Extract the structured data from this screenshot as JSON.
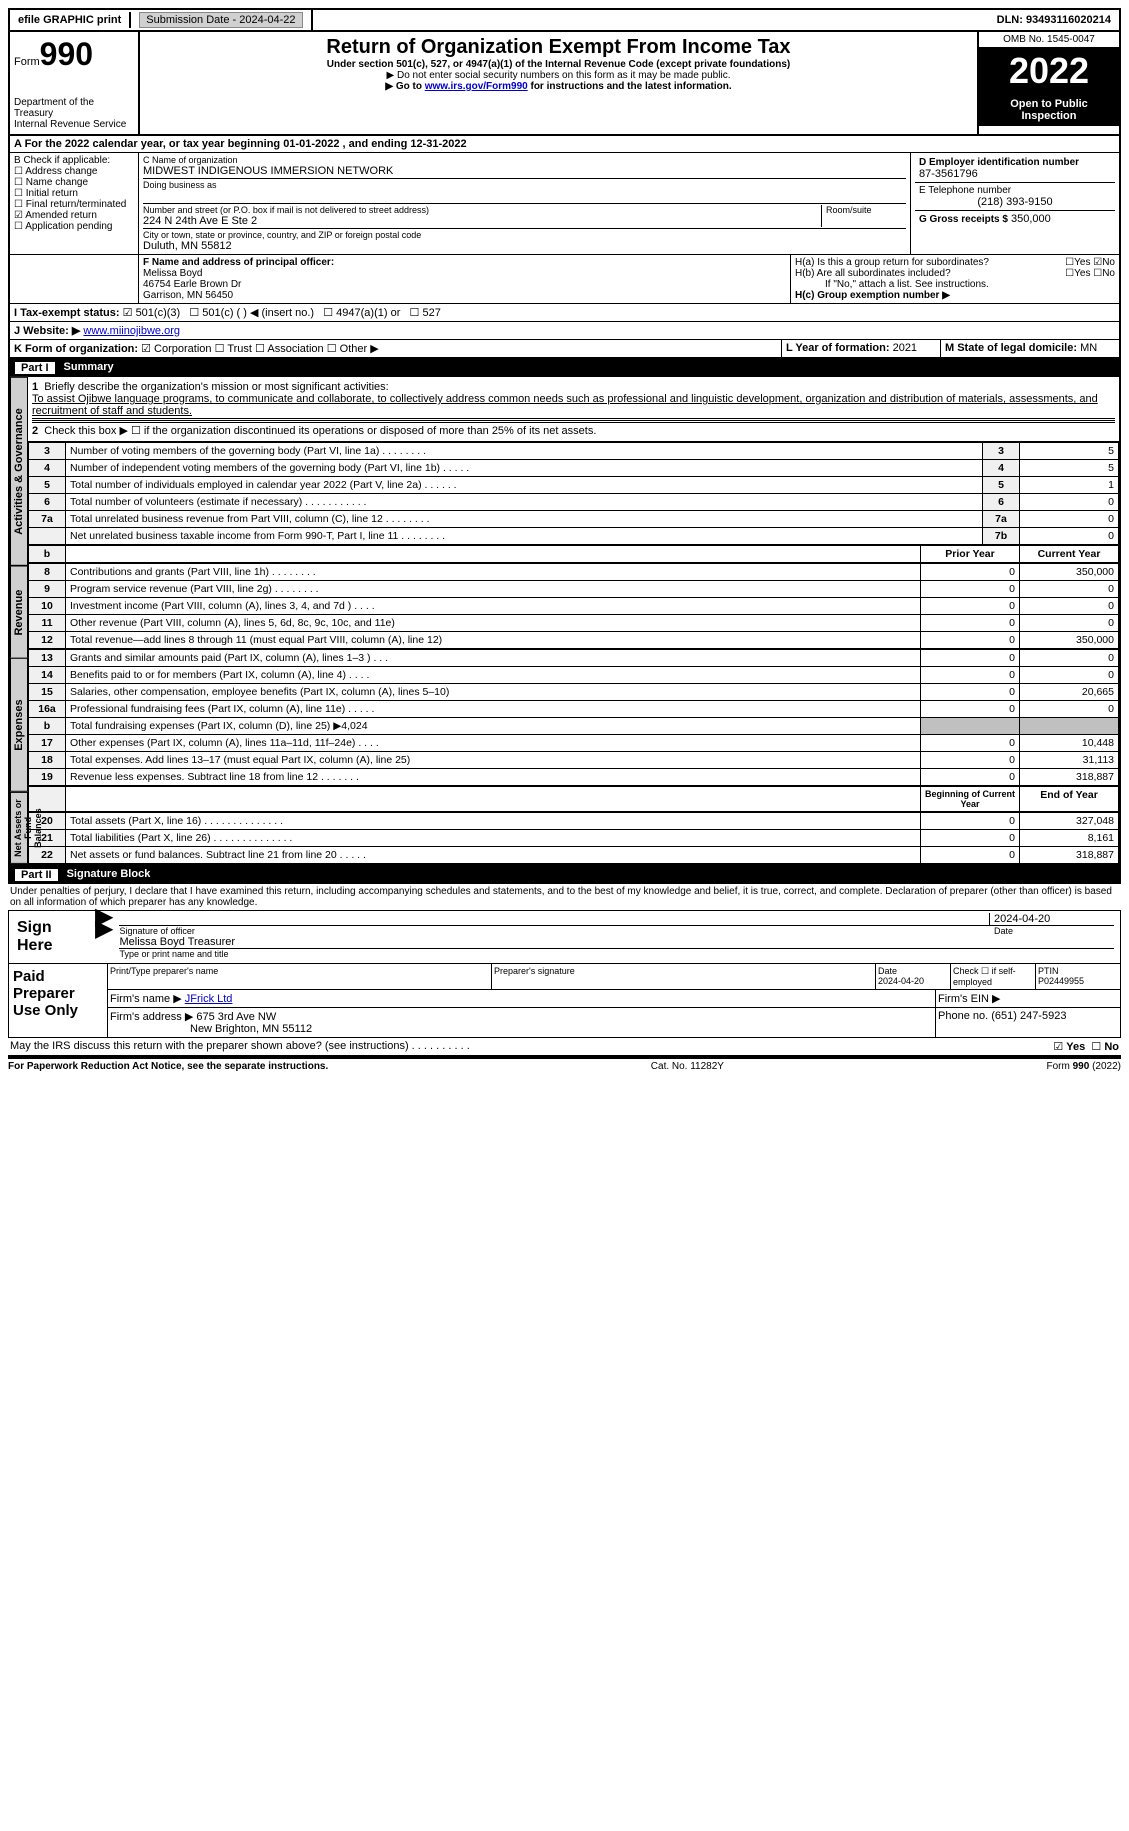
{
  "topbar": {
    "efile": "efile GRAPHIC print",
    "submission": "Submission Date - 2024-04-22",
    "dln": "DLN: 93493116020214"
  },
  "header": {
    "form_label": "Form",
    "form_number": "990",
    "dept": "Department of the Treasury",
    "irs": "Internal Revenue Service",
    "title": "Return of Organization Exempt From Income Tax",
    "subtitle": "Under section 501(c), 527, or 4947(a)(1) of the Internal Revenue Code (except private foundations)",
    "note1": "▶ Do not enter social security numbers on this form as it may be made public.",
    "note2_prefix": "▶ Go to ",
    "note2_link": "www.irs.gov/Form990",
    "note2_suffix": " for instructions and the latest information.",
    "omb": "OMB No. 1545-0047",
    "year": "2022",
    "inspect": "Open to Public Inspection"
  },
  "lineA": "A For the 2022 calendar year, or tax year beginning 01-01-2022   , and ending 12-31-2022",
  "boxB": {
    "title": "B Check if applicable:",
    "opts": [
      "Address change",
      "Name change",
      "Initial return",
      "Final return/terminated",
      "Amended return",
      "Application pending"
    ],
    "checked_index": 4
  },
  "boxC": {
    "label_name": "C Name of organization",
    "name": "MIDWEST INDIGENOUS IMMERSION NETWORK",
    "dba_label": "Doing business as",
    "addr_label": "Number and street (or P.O. box if mail is not delivered to street address)",
    "addr": "224 N 24th Ave E Ste 2",
    "room_label": "Room/suite",
    "city_label": "City or town, state or province, country, and ZIP or foreign postal code",
    "city": "Duluth, MN  55812"
  },
  "boxD": {
    "label": "D Employer identification number",
    "value": "87-3561796"
  },
  "boxE": {
    "label": "E Telephone number",
    "value": "(218) 393-9150"
  },
  "boxG": {
    "label": "G Gross receipts $",
    "value": "350,000"
  },
  "boxF": {
    "label": "F  Name and address of principal officer:",
    "name": "Melissa Boyd",
    "addr1": "46754 Earle Brown Dr",
    "addr2": "Garrison, MN  56450"
  },
  "boxH": {
    "ha": "H(a)  Is this a group return for subordinates?",
    "hb": "H(b)  Are all subordinates included?",
    "hb_note": "If \"No,\" attach a list. See instructions.",
    "hc": "H(c)  Group exemption number ▶",
    "yes": "Yes",
    "no": "No"
  },
  "lineI": {
    "label": "I   Tax-exempt status:",
    "o1": "501(c)(3)",
    "o2": "501(c) (  ) ◀ (insert no.)",
    "o3": "4947(a)(1) or",
    "o4": "527"
  },
  "lineJ": {
    "label": "J   Website: ▶",
    "value": "www.miinojibwe.org"
  },
  "lineK": {
    "label": "K Form of organization:",
    "o1": "Corporation",
    "o2": "Trust",
    "o3": "Association",
    "o4": "Other ▶"
  },
  "lineL": {
    "label": "L Year of formation:",
    "value": "2021"
  },
  "lineM": {
    "label": "M State of legal domicile:",
    "value": "MN"
  },
  "part1": {
    "label": "Part I",
    "title": "Summary"
  },
  "summary": {
    "line1_label": "1",
    "line1_text": "Briefly describe the organization's mission or most significant activities:",
    "line1_desc": "To assist Ojibwe language programs, to communicate and collaborate, to collectively address common needs such as professional and linguistic development, organization and distribution of materials, assessments, and recruitment of staff and students.",
    "line2": "Check this box ▶ ☐  if the organization discontinued its operations or disposed of more than 25% of its net assets.",
    "lines": [
      {
        "n": "3",
        "d": "Number of voting members of the governing body (Part VI, line 1a)  .    .    .    .    .    .    .    .",
        "box": "3",
        "v": "5"
      },
      {
        "n": "4",
        "d": "Number of independent voting members of the governing body (Part VI, line 1b)    .    .    .    .    .",
        "box": "4",
        "v": "5"
      },
      {
        "n": "5",
        "d": "Total number of individuals employed in calendar year 2022 (Part V, line 2a)   .    .    .    .    .    .",
        "box": "5",
        "v": "1"
      },
      {
        "n": "6",
        "d": "Total number of volunteers (estimate if necessary)     .    .    .    .    .    .    .    .    .    .    .",
        "box": "6",
        "v": "0"
      },
      {
        "n": "7a",
        "d": "Total unrelated business revenue from Part VIII, column (C), line 12   .    .    .    .    .    .    .    .",
        "box": "7a",
        "v": "0"
      },
      {
        "n": "",
        "d": "Net unrelated business taxable income from Form 990-T, Part I, line 11  .    .    .    .    .    .    .   .",
        "box": "7b",
        "v": "0"
      }
    ]
  },
  "revexp_header": {
    "b": "b",
    "prior": "Prior Year",
    "current": "Current Year"
  },
  "revenue": [
    {
      "n": "8",
      "d": "Contributions and grants (Part VIII, line 1h)     .    .    .    .    .    .    .    .",
      "p": "0",
      "c": "350,000"
    },
    {
      "n": "9",
      "d": "Program service revenue (Part VIII, line 2g)     .    .    .    .    .    .    .    .",
      "p": "0",
      "c": "0"
    },
    {
      "n": "10",
      "d": "Investment income (Part VIII, column (A), lines 3, 4, and 7d )    .    .    .    .",
      "p": "0",
      "c": "0"
    },
    {
      "n": "11",
      "d": "Other revenue (Part VIII, column (A), lines 5, 6d, 8c, 9c, 10c, and 11e)",
      "p": "0",
      "c": "0"
    },
    {
      "n": "12",
      "d": "Total revenue—add lines 8 through 11 (must equal Part VIII, column (A), line 12)",
      "p": "0",
      "c": "350,000"
    }
  ],
  "expenses": [
    {
      "n": "13",
      "d": "Grants and similar amounts paid (Part IX, column (A), lines 1–3 )   .    .    .",
      "p": "0",
      "c": "0"
    },
    {
      "n": "14",
      "d": "Benefits paid to or for members (Part IX, column (A), line 4)    .    .    .    .",
      "p": "0",
      "c": "0"
    },
    {
      "n": "15",
      "d": "Salaries, other compensation, employee benefits (Part IX, column (A), lines 5–10)",
      "p": "0",
      "c": "20,665"
    },
    {
      "n": "16a",
      "d": "Professional fundraising fees (Part IX, column (A), line 11e)    .    .    .    .    .",
      "p": "0",
      "c": "0"
    },
    {
      "n": "b",
      "d": "Total fundraising expenses (Part IX, column (D), line 25) ▶4,024",
      "p": "",
      "c": "",
      "grey": true
    },
    {
      "n": "17",
      "d": "Other expenses (Part IX, column (A), lines 11a–11d, 11f–24e)    .    .    .    .",
      "p": "0",
      "c": "10,448"
    },
    {
      "n": "18",
      "d": "Total expenses. Add lines 13–17 (must equal Part IX, column (A), line 25)",
      "p": "0",
      "c": "31,113"
    },
    {
      "n": "19",
      "d": "Revenue less expenses. Subtract line 18 from line 12  .    .    .    .    .    .    .",
      "p": "0",
      "c": "318,887"
    }
  ],
  "netassets_header": {
    "begin": "Beginning of Current Year",
    "end": "End of Year"
  },
  "netassets": [
    {
      "n": "20",
      "d": "Total assets (Part X, line 16)  .    .    .    .    .    .    .    .    .    .    .    .    .    .",
      "p": "0",
      "c": "327,048"
    },
    {
      "n": "21",
      "d": "Total liabilities (Part X, line 26)   .    .    .    .    .    .    .    .    .    .    .    .    .    .",
      "p": "0",
      "c": "8,161"
    },
    {
      "n": "22",
      "d": "Net assets or fund balances. Subtract line 21 from line 20    .    .    .    .    .",
      "p": "0",
      "c": "318,887"
    }
  ],
  "part2": {
    "label": "Part II",
    "title": "Signature Block"
  },
  "sig_declaration": "Under penalties of perjury, I declare that I have examined this return, including accompanying schedules and statements, and to the best of my knowledge and belief, it is true, correct, and complete. Declaration of preparer (other than officer) is based on all information of which preparer has any knowledge.",
  "sign_here": {
    "label": "Sign Here",
    "sig_label": "Signature of officer",
    "date": "2024-04-20",
    "date_label": "Date",
    "name": "Melissa Boyd Treasurer",
    "name_label": "Type or print name and title"
  },
  "paid_prep": {
    "label": "Paid Preparer Use Only",
    "col1": "Print/Type preparer's name",
    "col2": "Preparer's signature",
    "col3_label": "Date",
    "col3_val": "2024-04-20",
    "col4": "Check ☐ if self-employed",
    "col5_label": "PTIN",
    "col5_val": "P02449955",
    "firm_name_label": "Firm's name    ▶",
    "firm_name": "JFrick Ltd",
    "firm_ein": "Firm's EIN ▶",
    "firm_addr_label": "Firm's address ▶",
    "firm_addr1": "675 3rd Ave NW",
    "firm_addr2": "New Brighton, MN  55112",
    "phone_label": "Phone no.",
    "phone": "(651) 247-5923"
  },
  "discuss": {
    "text": "May the IRS discuss this return with the preparer shown above? (see instructions)    .    .    .    .    .    .    .    .    .    .",
    "yes": "Yes",
    "no": "No"
  },
  "footer": {
    "left": "For Paperwork Reduction Act Notice, see the separate instructions.",
    "mid": "Cat. No. 11282Y",
    "right": "Form 990 (2022)"
  },
  "tabs": {
    "act_gov": "Activities & Governance",
    "revenue": "Revenue",
    "expenses": "Expenses",
    "net": "Net Assets or Fund Balances"
  }
}
